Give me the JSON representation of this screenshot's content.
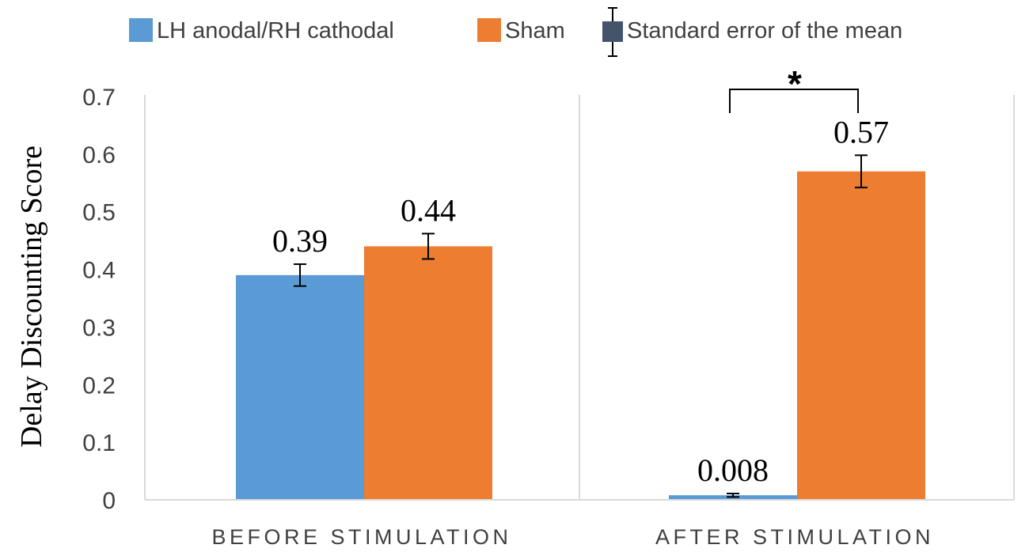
{
  "chart_data": {
    "type": "bar",
    "title": "",
    "xlabel": "",
    "ylabel": "Delay Discounting Score",
    "ylim": [
      0,
      0.7
    ],
    "yticks": [
      0,
      0.1,
      0.2,
      0.3,
      0.4,
      0.5,
      0.6,
      0.7
    ],
    "ytick_labels": [
      "0",
      "0.1",
      "0.2",
      "0.3",
      "0.4",
      "0.5",
      "0.6",
      "0.7"
    ],
    "grid": false,
    "legend_position": "top",
    "categories": [
      "BEFORE STIMULATION",
      "AFTER STIMULATION"
    ],
    "series": [
      {
        "name": "LH anodal/RH cathodal",
        "color": "#5b9bd5",
        "values": [
          0.39,
          0.008
        ],
        "errors": [
          0.019,
          0.003
        ],
        "labels": [
          "0.39",
          "0.008"
        ]
      },
      {
        "name": "Sham",
        "color": "#ed7d31",
        "values": [
          0.44,
          0.57
        ],
        "errors": [
          0.022,
          0.028
        ],
        "labels": [
          "0.44",
          "0.57"
        ]
      }
    ],
    "error_legend": {
      "label": "Standard error of the mean",
      "color": "#44546a"
    },
    "significance": {
      "category_index": 1,
      "marker": "*"
    }
  }
}
